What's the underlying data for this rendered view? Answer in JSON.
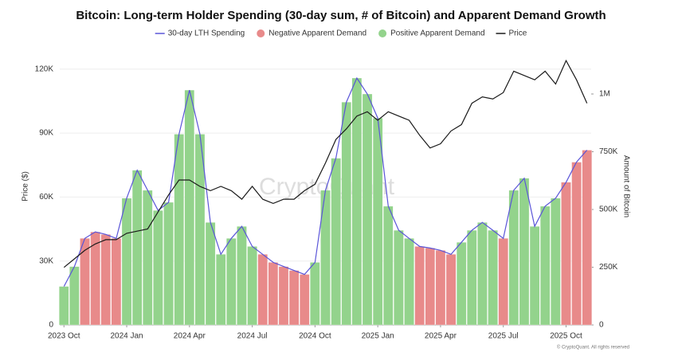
{
  "chart_data": {
    "type": "combo",
    "title": "Bitcoin: Long-term Holder Spending (30-day sum, # of Bitcoin) and Apparent Demand Growth",
    "y_label": "Price ($)",
    "y2_label": "Amount of Bitcoin",
    "watermark": "CryptoQuant",
    "footnote": "© CryptoQuant. All rights reserved",
    "x": [
      0,
      0.5,
      1,
      1.5,
      2,
      2.5,
      3,
      3.5,
      4,
      4.5,
      5,
      5.5,
      6,
      6.5,
      7,
      7.5,
      8,
      8.5,
      9,
      9.5,
      10,
      10.5,
      11,
      11.5,
      12,
      12.5,
      13,
      13.5,
      14,
      14.5,
      15,
      15.5,
      16,
      16.5,
      17,
      17.5,
      18,
      18.5,
      19,
      19.5,
      20,
      20.5,
      21,
      21.5,
      22,
      22.5,
      23,
      23.5,
      24,
      24.5,
      25
    ],
    "xlim": [
      -0.2,
      25.2
    ],
    "xticks": [
      {
        "value": 0,
        "label": "2023 Oct"
      },
      {
        "value": 3,
        "label": "2024 Jan"
      },
      {
        "value": 6,
        "label": "2024 Apr"
      },
      {
        "value": 9,
        "label": "2024 Jul"
      },
      {
        "value": 12,
        "label": "2024 Oct"
      },
      {
        "value": 15,
        "label": "2025 Jan"
      },
      {
        "value": 18,
        "label": "2025 Apr"
      },
      {
        "value": 21,
        "label": "2025 Jul"
      },
      {
        "value": 24,
        "label": "2025 Oct"
      }
    ],
    "ylim": [
      0,
      130000
    ],
    "yticks": [
      0,
      {
        "value": 30000,
        "label": "30K"
      },
      {
        "value": 60000,
        "label": "60K"
      },
      {
        "value": 90000,
        "label": "90K"
      },
      {
        "value": 120000,
        "label": "120K"
      }
    ],
    "y2lim": [
      0,
      1200000
    ],
    "y2ticks": [
      0,
      {
        "value": 250000,
        "label": "250K"
      },
      {
        "value": 500000,
        "label": "500K"
      },
      {
        "value": 750000,
        "label": "750K"
      },
      {
        "value": 1000000,
        "label": "1M"
      }
    ],
    "grid": true,
    "series": [
      {
        "name": "30-day LTH Spending",
        "type": "line",
        "axis": "y2",
        "color": "#5a55d8",
        "values": [
          167000,
          253000,
          375000,
          403000,
          392000,
          375000,
          549000,
          670000,
          583000,
          496000,
          531000,
          826000,
          1017000,
          826000,
          444000,
          306000,
          375000,
          427000,
          340000,
          306000,
          271000,
          253000,
          236000,
          219000,
          271000,
          583000,
          722000,
          965000,
          1069000,
          1000000,
          896000,
          514000,
          410000,
          375000,
          340000,
          333000,
          323000,
          306000,
          358000,
          410000,
          444000,
          410000,
          375000,
          583000,
          635000,
          427000,
          514000,
          549000,
          618000,
          705000,
          757000
        ]
      },
      {
        "name": "Negative Apparent Demand",
        "type": "bar",
        "axis": "y2",
        "color": "#e88a8a",
        "values": [
          null,
          null,
          375000,
          403000,
          392000,
          375000,
          null,
          null,
          null,
          null,
          null,
          null,
          null,
          null,
          null,
          null,
          null,
          null,
          null,
          306000,
          271000,
          253000,
          236000,
          219000,
          null,
          null,
          null,
          null,
          null,
          null,
          null,
          null,
          null,
          null,
          340000,
          333000,
          323000,
          306000,
          null,
          null,
          null,
          null,
          375000,
          null,
          null,
          null,
          null,
          null,
          618000,
          705000,
          757000
        ]
      },
      {
        "name": "Positive Apparent Demand",
        "type": "bar",
        "axis": "y2",
        "color": "#93d38c",
        "values": [
          167000,
          253000,
          null,
          null,
          null,
          null,
          549000,
          670000,
          583000,
          496000,
          531000,
          826000,
          1017000,
          826000,
          444000,
          306000,
          375000,
          427000,
          340000,
          null,
          null,
          null,
          null,
          null,
          271000,
          583000,
          722000,
          965000,
          1069000,
          1000000,
          896000,
          514000,
          410000,
          375000,
          null,
          null,
          null,
          null,
          358000,
          410000,
          444000,
          410000,
          null,
          583000,
          635000,
          427000,
          514000,
          549000,
          null,
          null,
          null
        ]
      },
      {
        "name": "Price",
        "type": "line",
        "color": "#1a1a1a",
        "values": [
          27000,
          31000,
          35000,
          38000,
          40000,
          40000,
          43000,
          44000,
          45000,
          53000,
          61000,
          68000,
          68000,
          65000,
          63000,
          65000,
          63000,
          59000,
          65000,
          59000,
          57000,
          59000,
          59000,
          63000,
          66000,
          76000,
          87000,
          92000,
          98000,
          100000,
          96000,
          100000,
          98000,
          96000,
          89000,
          83000,
          85000,
          91000,
          94000,
          104000,
          107000,
          106000,
          109000,
          119000,
          117000,
          115000,
          119000,
          113000,
          124000,
          115000,
          104000
        ]
      }
    ]
  }
}
